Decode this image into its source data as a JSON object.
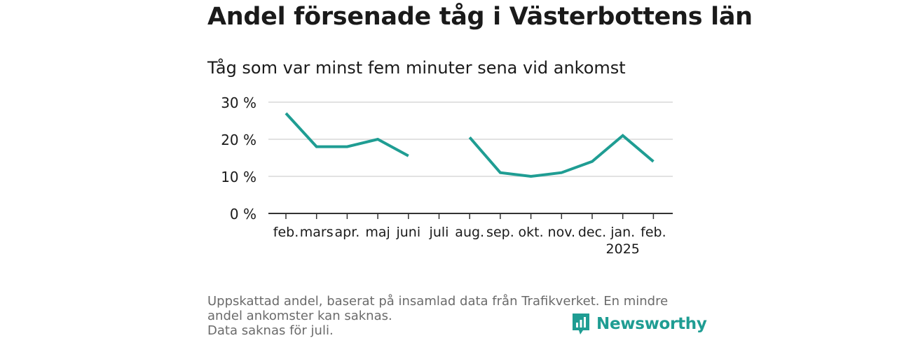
{
  "title": "Andel försenade tåg i Västerbottens län",
  "subtitle": "Tåg som var minst fem minuter sena vid ankomst",
  "footnote": {
    "line1": "Uppskattad andel, baserat på insamlad data från Trafikverket. En mindre andel ankomster kan saknas.",
    "line2": "Data saknas för juli."
  },
  "brand": {
    "name": "Newsworthy",
    "icon": "newsworthy-logo-icon",
    "color": "#1f9d93"
  },
  "chart_data": {
    "type": "line",
    "categories": [
      "feb.",
      "mars",
      "apr.",
      "maj",
      "juni",
      "juli",
      "aug.",
      "sep.",
      "okt.",
      "nov.",
      "dec.",
      "jan.",
      "feb."
    ],
    "category_sublabels": [
      "",
      "",
      "",
      "",
      "",
      "",
      "",
      "",
      "",
      "",
      "",
      "2025",
      ""
    ],
    "series": [
      {
        "values": [
          27,
          18,
          18,
          20,
          15.5,
          null,
          20.5,
          11,
          10,
          11,
          14,
          21,
          14
        ],
        "color": "#1f9d93"
      }
    ],
    "yticks": [
      "0 %",
      "10 %",
      "20 %",
      "30 %"
    ],
    "ytick_values": [
      0,
      10,
      20,
      30
    ],
    "ylim": [
      0,
      30
    ],
    "grid": true
  }
}
